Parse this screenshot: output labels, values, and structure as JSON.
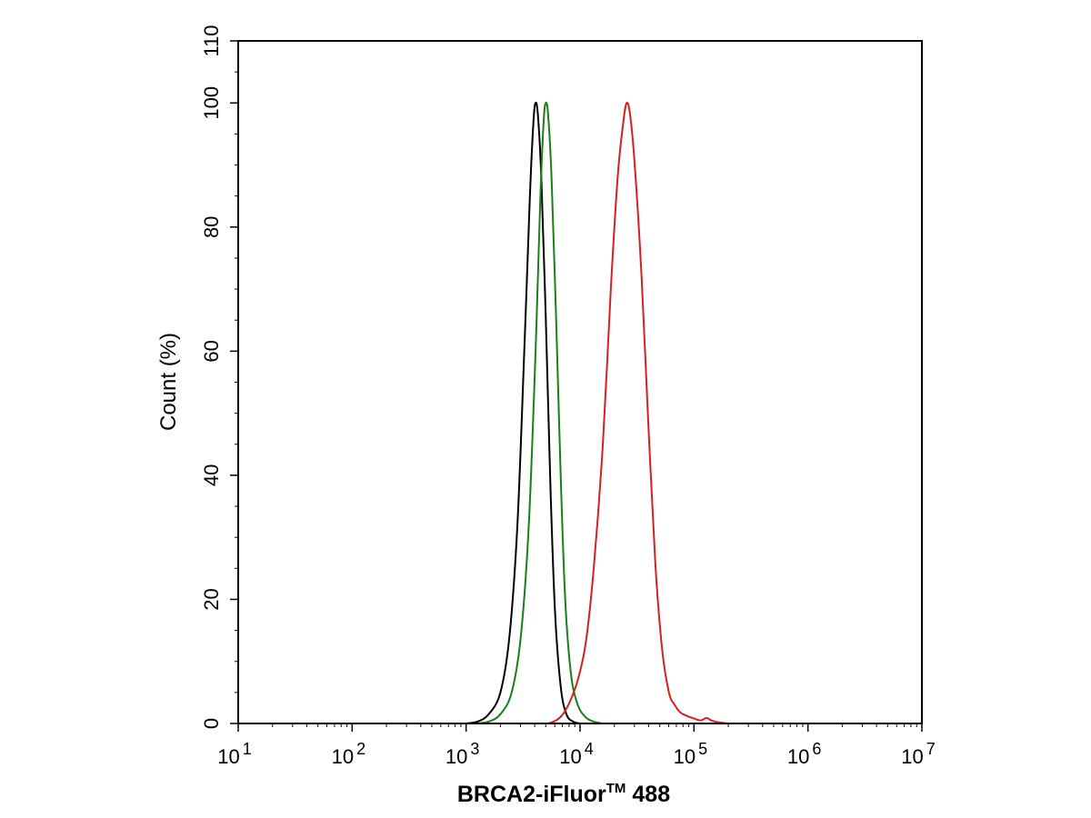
{
  "chart_data": {
    "type": "line",
    "title": "",
    "xlabel": "BRCA2-iFluor",
    "xlabel_superscript": "TM",
    "xlabel_suffix": " 488",
    "ylabel": "Count  (%)",
    "x_scale": "log",
    "xlim": [
      10,
      10000000
    ],
    "ylim": [
      0,
      110
    ],
    "grid": false,
    "legend": "none",
    "x_ticks": [
      {
        "value": 10,
        "base": "10",
        "exp": "1"
      },
      {
        "value": 100,
        "base": "10",
        "exp": "2"
      },
      {
        "value": 1000,
        "base": "10",
        "exp": "3"
      },
      {
        "value": 10000,
        "base": "10",
        "exp": "4"
      },
      {
        "value": 100000,
        "base": "10",
        "exp": "5"
      },
      {
        "value": 1000000,
        "base": "10",
        "exp": "6"
      },
      {
        "value": 10000000,
        "base": "10",
        "exp": "7"
      }
    ],
    "y_ticks": [
      0,
      20,
      40,
      60,
      80,
      100,
      110
    ],
    "series": [
      {
        "color": "#000000",
        "points": [
          [
            1000,
            0
          ],
          [
            1260,
            0.3
          ],
          [
            1580,
            1.5
          ],
          [
            2000,
            5
          ],
          [
            2400,
            14
          ],
          [
            2820,
            32
          ],
          [
            3240,
            60
          ],
          [
            3630,
            85
          ],
          [
            3900,
            97
          ],
          [
            4070,
            100
          ],
          [
            4270,
            98
          ],
          [
            4570,
            88
          ],
          [
            5010,
            65
          ],
          [
            5500,
            38
          ],
          [
            6030,
            18
          ],
          [
            6760,
            6
          ],
          [
            7590,
            1.5
          ],
          [
            8700,
            0.3
          ],
          [
            10000,
            0
          ]
        ]
      },
      {
        "color": "#1a7f1a",
        "points": [
          [
            1260,
            0
          ],
          [
            1580,
            0.3
          ],
          [
            2000,
            1.5
          ],
          [
            2510,
            5
          ],
          [
            3020,
            14
          ],
          [
            3550,
            32
          ],
          [
            4070,
            60
          ],
          [
            4470,
            84
          ],
          [
            4790,
            97
          ],
          [
            5010,
            100
          ],
          [
            5250,
            98
          ],
          [
            5620,
            88
          ],
          [
            6170,
            65
          ],
          [
            6760,
            40
          ],
          [
            7410,
            20
          ],
          [
            8320,
            8
          ],
          [
            9550,
            3
          ],
          [
            11220,
            1
          ],
          [
            13180,
            0.3
          ],
          [
            15850,
            0
          ]
        ]
      },
      {
        "color": "#d42020",
        "points": [
          [
            5250,
            0
          ],
          [
            6170,
            0.5
          ],
          [
            7080,
            1.5
          ],
          [
            8130,
            3.5
          ],
          [
            9550,
            7
          ],
          [
            11220,
            13
          ],
          [
            13180,
            25
          ],
          [
            15850,
            45
          ],
          [
            18620,
            70
          ],
          [
            21380,
            88
          ],
          [
            23990,
            97
          ],
          [
            25700,
            100
          ],
          [
            27540,
            98
          ],
          [
            30200,
            90
          ],
          [
            34670,
            72
          ],
          [
            39810,
            48
          ],
          [
            45710,
            26
          ],
          [
            52480,
            12
          ],
          [
            60260,
            5
          ],
          [
            67610,
            3
          ],
          [
            75860,
            1.8
          ],
          [
            87100,
            1.2
          ],
          [
            100000,
            0.8
          ],
          [
            114800,
            0.5
          ],
          [
            128800,
            0.9
          ],
          [
            141300,
            0.5
          ],
          [
            162200,
            0.2
          ],
          [
            199500,
            0
          ]
        ]
      }
    ]
  }
}
